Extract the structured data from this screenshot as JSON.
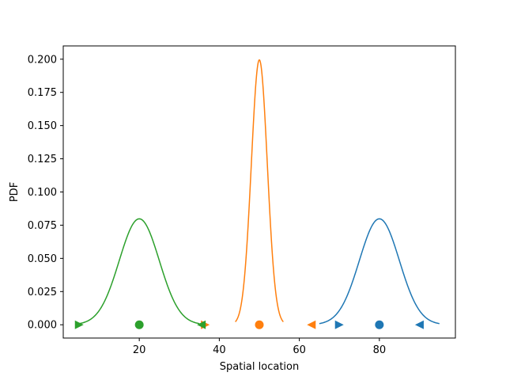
{
  "chart_data": {
    "type": "line",
    "title": "",
    "xlabel": "Spatial location",
    "ylabel": "PDF",
    "xlim": [
      1,
      99
    ],
    "ylim": [
      -0.01,
      0.21
    ],
    "xticks": [
      20,
      40,
      60,
      80
    ],
    "yticks": [
      0.0,
      0.025,
      0.05,
      0.075,
      0.1,
      0.125,
      0.15,
      0.175,
      0.2
    ],
    "xtick_labels": [
      "20",
      "40",
      "60",
      "80"
    ],
    "ytick_labels": [
      "0.000",
      "0.025",
      "0.050",
      "0.075",
      "0.100",
      "0.125",
      "0.150",
      "0.175",
      "0.200"
    ],
    "grid": false,
    "legend": "none",
    "series": [
      {
        "color": "#1f77b4",
        "curve": {
          "mean": 80,
          "sd": 5,
          "x_range": [
            65,
            95
          ]
        },
        "markers": [
          {
            "shape": "triangle-right",
            "x": 70,
            "y": 0
          },
          {
            "shape": "circle",
            "x": 80,
            "y": 0
          },
          {
            "shape": "triangle-left",
            "x": 90,
            "y": 0
          }
        ]
      },
      {
        "color": "#ff7f0e",
        "curve": {
          "mean": 50,
          "sd": 2,
          "x_range": [
            44,
            56
          ]
        },
        "markers": [
          {
            "shape": "triangle-right",
            "x": 36.5,
            "y": 0
          },
          {
            "shape": "circle",
            "x": 50,
            "y": 0
          },
          {
            "shape": "triangle-left",
            "x": 63,
            "y": 0
          }
        ]
      },
      {
        "color": "#2ca02c",
        "curve": {
          "mean": 20,
          "sd": 5,
          "x_range": [
            5,
            35
          ]
        },
        "markers": [
          {
            "shape": "triangle-right",
            "x": 5,
            "y": 0
          },
          {
            "shape": "circle",
            "x": 20,
            "y": 0
          },
          {
            "shape": "triangle-left",
            "x": 35.5,
            "y": 0
          }
        ]
      }
    ]
  }
}
